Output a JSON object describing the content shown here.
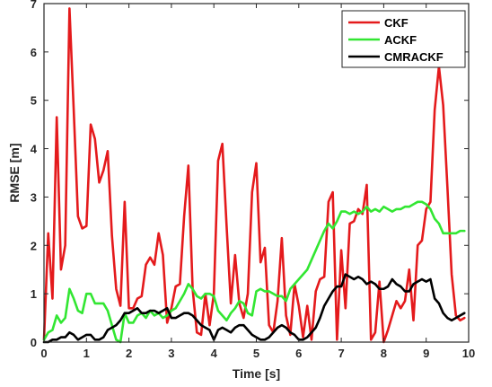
{
  "chart_data": {
    "type": "line",
    "title": "",
    "xlabel": "Time [s]",
    "ylabel": "RMSE [m]",
    "xlim": [
      0,
      10
    ],
    "ylim": [
      0,
      7
    ],
    "x_ticks": [
      "0",
      "1",
      "2",
      "3",
      "4",
      "5",
      "6",
      "7",
      "8",
      "9",
      "10"
    ],
    "y_ticks": [
      "0",
      "1",
      "2",
      "3",
      "4",
      "5",
      "6",
      "7"
    ],
    "grid": false,
    "legend": "top-right",
    "series": [
      {
        "name": "CKF",
        "color": "#e41a1c",
        "x": [
          0.0,
          0.1,
          0.2,
          0.3,
          0.4,
          0.5,
          0.6,
          0.7,
          0.8,
          0.9,
          1.0,
          1.1,
          1.2,
          1.3,
          1.4,
          1.5,
          1.6,
          1.7,
          1.8,
          1.9,
          2.0,
          2.1,
          2.2,
          2.3,
          2.4,
          2.5,
          2.6,
          2.7,
          2.8,
          2.9,
          3.0,
          3.1,
          3.2,
          3.3,
          3.4,
          3.5,
          3.6,
          3.7,
          3.8,
          3.9,
          4.0,
          4.1,
          4.2,
          4.3,
          4.4,
          4.5,
          4.6,
          4.7,
          4.8,
          4.9,
          5.0,
          5.1,
          5.2,
          5.3,
          5.4,
          5.5,
          5.6,
          5.7,
          5.8,
          5.9,
          6.0,
          6.1,
          6.2,
          6.3,
          6.4,
          6.5,
          6.6,
          6.7,
          6.8,
          6.9,
          7.0,
          7.1,
          7.2,
          7.3,
          7.4,
          7.5,
          7.6,
          7.7,
          7.8,
          7.9,
          8.0,
          8.1,
          8.2,
          8.3,
          8.4,
          8.5,
          8.6,
          8.7,
          8.8,
          8.9,
          9.0,
          9.1,
          9.2,
          9.3,
          9.4,
          9.5,
          9.6,
          9.7,
          9.8,
          9.9
        ],
        "values": [
          0.05,
          2.25,
          0.9,
          4.65,
          1.5,
          2.0,
          6.9,
          4.8,
          2.6,
          2.35,
          2.4,
          4.5,
          4.2,
          3.3,
          3.55,
          3.95,
          2.2,
          1.1,
          0.75,
          2.9,
          0.7,
          0.7,
          0.9,
          0.95,
          1.6,
          1.75,
          1.6,
          2.25,
          1.8,
          0.4,
          0.7,
          1.15,
          1.2,
          2.6,
          3.65,
          1.1,
          0.2,
          0.15,
          1.0,
          0.35,
          1.0,
          3.75,
          4.1,
          2.4,
          0.8,
          1.8,
          0.8,
          0.5,
          1.0,
          3.1,
          3.7,
          1.65,
          1.95,
          0.35,
          0.2,
          0.85,
          2.15,
          0.55,
          0.15,
          1.2,
          0.75,
          0.1,
          0.75,
          0.05,
          1.05,
          1.3,
          1.35,
          2.9,
          3.1,
          0.05,
          1.9,
          0.7,
          2.45,
          2.5,
          2.75,
          2.65,
          3.25,
          0.05,
          0.2,
          1.25,
          0.0,
          0.25,
          0.55,
          0.85,
          0.7,
          0.85,
          1.5,
          0.45,
          2.0,
          2.1,
          2.75,
          2.9,
          4.8,
          5.7,
          4.9,
          3.2,
          1.4,
          0.55,
          0.45,
          0.5
        ]
      },
      {
        "name": "ACKF",
        "color": "#32e632",
        "x": [
          0.0,
          0.1,
          0.2,
          0.3,
          0.4,
          0.5,
          0.6,
          0.7,
          0.8,
          0.9,
          1.0,
          1.1,
          1.2,
          1.3,
          1.4,
          1.5,
          1.6,
          1.7,
          1.8,
          1.9,
          2.0,
          2.1,
          2.2,
          2.3,
          2.4,
          2.5,
          2.6,
          2.7,
          2.8,
          2.9,
          3.0,
          3.1,
          3.2,
          3.3,
          3.4,
          3.5,
          3.6,
          3.7,
          3.8,
          3.9,
          4.0,
          4.1,
          4.2,
          4.3,
          4.4,
          4.5,
          4.6,
          4.7,
          4.8,
          4.9,
          5.0,
          5.1,
          5.2,
          5.3,
          5.4,
          5.5,
          5.6,
          5.7,
          5.8,
          5.9,
          6.0,
          6.1,
          6.2,
          6.3,
          6.4,
          6.5,
          6.6,
          6.7,
          6.8,
          6.9,
          7.0,
          7.1,
          7.2,
          7.3,
          7.4,
          7.5,
          7.6,
          7.7,
          7.8,
          7.9,
          8.0,
          8.1,
          8.2,
          8.3,
          8.4,
          8.5,
          8.6,
          8.7,
          8.8,
          8.9,
          9.0,
          9.1,
          9.2,
          9.3,
          9.4,
          9.5,
          9.6,
          9.7,
          9.8,
          9.9
        ],
        "values": [
          0.05,
          0.2,
          0.25,
          0.55,
          0.4,
          0.5,
          1.1,
          0.9,
          0.65,
          0.6,
          1.0,
          1.0,
          0.8,
          0.8,
          0.8,
          0.65,
          0.35,
          0.05,
          0.0,
          0.6,
          0.4,
          0.4,
          0.55,
          0.6,
          0.5,
          0.65,
          0.55,
          0.6,
          0.5,
          0.55,
          0.65,
          0.7,
          0.85,
          1.0,
          1.2,
          1.1,
          0.95,
          0.9,
          1.0,
          1.0,
          0.95,
          0.65,
          0.55,
          0.45,
          0.6,
          0.7,
          0.85,
          0.8,
          0.6,
          0.55,
          1.05,
          1.1,
          1.05,
          1.05,
          1.0,
          0.95,
          0.95,
          0.85,
          1.1,
          1.2,
          1.3,
          1.4,
          1.5,
          1.7,
          1.9,
          2.1,
          2.3,
          2.45,
          2.35,
          2.5,
          2.7,
          2.7,
          2.65,
          2.7,
          2.65,
          2.7,
          2.8,
          2.7,
          2.75,
          2.7,
          2.8,
          2.75,
          2.7,
          2.75,
          2.75,
          2.8,
          2.8,
          2.85,
          2.9,
          2.9,
          2.85,
          2.75,
          2.55,
          2.45,
          2.25,
          2.25,
          2.25,
          2.25,
          2.3,
          2.3
        ]
      },
      {
        "name": "CMRACKF",
        "color": "#000000",
        "x": [
          0.0,
          0.1,
          0.2,
          0.3,
          0.4,
          0.5,
          0.6,
          0.7,
          0.8,
          0.9,
          1.0,
          1.1,
          1.2,
          1.3,
          1.4,
          1.5,
          1.6,
          1.7,
          1.8,
          1.9,
          2.0,
          2.1,
          2.2,
          2.3,
          2.4,
          2.5,
          2.6,
          2.7,
          2.8,
          2.9,
          3.0,
          3.1,
          3.2,
          3.3,
          3.4,
          3.5,
          3.6,
          3.7,
          3.8,
          3.9,
          4.0,
          4.1,
          4.2,
          4.3,
          4.4,
          4.5,
          4.6,
          4.7,
          4.8,
          4.9,
          5.0,
          5.1,
          5.2,
          5.3,
          5.4,
          5.5,
          5.6,
          5.7,
          5.8,
          5.9,
          6.0,
          6.1,
          6.2,
          6.3,
          6.4,
          6.5,
          6.6,
          6.7,
          6.8,
          6.9,
          7.0,
          7.1,
          7.2,
          7.3,
          7.4,
          7.5,
          7.6,
          7.7,
          7.8,
          7.9,
          8.0,
          8.1,
          8.2,
          8.3,
          8.4,
          8.5,
          8.6,
          8.7,
          8.8,
          8.9,
          9.0,
          9.1,
          9.2,
          9.3,
          9.4,
          9.5,
          9.6,
          9.7,
          9.8,
          9.9
        ],
        "values": [
          0.0,
          0.0,
          0.05,
          0.05,
          0.1,
          0.1,
          0.2,
          0.15,
          0.05,
          0.1,
          0.15,
          0.15,
          0.05,
          0.05,
          0.1,
          0.25,
          0.3,
          0.35,
          0.45,
          0.6,
          0.6,
          0.65,
          0.7,
          0.6,
          0.6,
          0.65,
          0.65,
          0.6,
          0.65,
          0.7,
          0.5,
          0.5,
          0.55,
          0.6,
          0.6,
          0.55,
          0.45,
          0.35,
          0.3,
          0.25,
          0.05,
          0.25,
          0.3,
          0.25,
          0.2,
          0.3,
          0.35,
          0.35,
          0.25,
          0.15,
          0.1,
          0.05,
          0.05,
          0.1,
          0.2,
          0.3,
          0.35,
          0.3,
          0.2,
          0.15,
          0.05,
          0.05,
          0.1,
          0.2,
          0.3,
          0.5,
          0.75,
          0.9,
          1.05,
          1.15,
          1.15,
          1.4,
          1.35,
          1.3,
          1.35,
          1.3,
          1.2,
          1.25,
          1.2,
          1.1,
          1.1,
          1.15,
          1.3,
          1.2,
          1.15,
          1.05,
          1.05,
          1.2,
          1.25,
          1.3,
          1.25,
          1.3,
          0.9,
          0.8,
          0.6,
          0.5,
          0.45,
          0.5,
          0.55,
          0.6
        ]
      }
    ]
  }
}
